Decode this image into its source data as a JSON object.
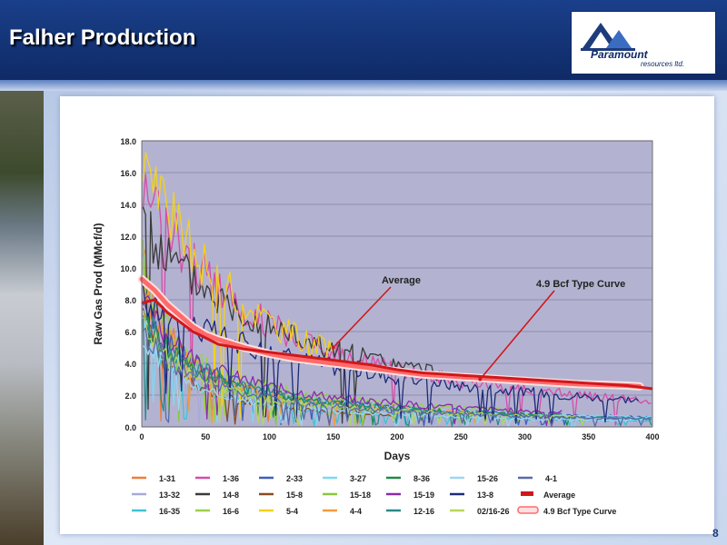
{
  "header": {
    "title": "Falher Production",
    "page_number": "8"
  },
  "logo": {
    "name": "Paramount",
    "sub": "resources ltd."
  },
  "colors": {
    "header_bg": "#1a3f8a",
    "plot_bg": "#b3b3d1",
    "average": "#d0181c",
    "type_curve": "#ff6a6a"
  },
  "chart_data": {
    "type": "line",
    "title": "",
    "xlabel": "Days",
    "ylabel": "Raw Gas Prod (MMcf/d)",
    "xlim": [
      0,
      400
    ],
    "ylim": [
      0,
      18
    ],
    "x_ticks": [
      "0",
      "50",
      "100",
      "150",
      "200",
      "250",
      "300",
      "350",
      "400"
    ],
    "y_ticks": [
      "0.0",
      "2.0",
      "4.0",
      "6.0",
      "8.0",
      "10.0",
      "12.0",
      "14.0",
      "16.0",
      "18.0"
    ],
    "grid": "horizontal",
    "annotations": [
      {
        "text": "Average",
        "points_to": [
          150,
          5.0
        ]
      },
      {
        "text": "4.9 Bcf Type Curve",
        "points_to": [
          265,
          3.0
        ]
      }
    ],
    "legend_position": "bottom",
    "series": [
      {
        "name": "1-31",
        "color": "#f07c3c",
        "qi": 11.0,
        "b": 0.9,
        "di": 0.04,
        "end": 140,
        "seed": 1
      },
      {
        "name": "13-32",
        "color": "#a9a9d8",
        "qi": 9.0,
        "b": 0.7,
        "di": 0.03,
        "end": 360,
        "seed": 2
      },
      {
        "name": "16-35",
        "color": "#3ec4d4",
        "qi": 8.0,
        "b": 1.0,
        "di": 0.05,
        "end": 400,
        "seed": 3
      },
      {
        "name": "1-36",
        "color": "#d64ca8",
        "qi": 16.0,
        "b": 0.6,
        "di": 0.012,
        "end": 400,
        "seed": 4
      },
      {
        "name": "14-8",
        "color": "#3a3a3a",
        "qi": 12.5,
        "b": 0.5,
        "di": 0.008,
        "end": 240,
        "seed": 5
      },
      {
        "name": "16-6",
        "color": "#9bd14a",
        "qi": 10.0,
        "b": 1.0,
        "di": 0.03,
        "end": 300,
        "seed": 6
      },
      {
        "name": "2-33",
        "color": "#3f5ebc",
        "qi": 7.5,
        "b": 0.8,
        "di": 0.02,
        "end": 400,
        "seed": 7
      },
      {
        "name": "15-8",
        "color": "#8a4a22",
        "qi": 8.0,
        "b": 1.0,
        "di": 0.05,
        "end": 200,
        "seed": 8
      },
      {
        "name": "5-4",
        "color": "#f4d21b",
        "qi": 17.0,
        "b": 0.5,
        "di": 0.012,
        "end": 150,
        "seed": 9
      },
      {
        "name": "3-27",
        "color": "#7fd8ee",
        "qi": 6.5,
        "b": 0.9,
        "di": 0.02,
        "end": 400,
        "seed": 10
      },
      {
        "name": "15-18",
        "color": "#86c93c",
        "qi": 11.0,
        "b": 1.0,
        "di": 0.05,
        "end": 180,
        "seed": 11
      },
      {
        "name": "4-4",
        "color": "#f79a3c",
        "qi": 9.0,
        "b": 0.9,
        "di": 0.03,
        "end": 270,
        "seed": 12
      },
      {
        "name": "8-36",
        "color": "#1f8a4a",
        "qi": 7.0,
        "b": 0.8,
        "di": 0.02,
        "end": 340,
        "seed": 13
      },
      {
        "name": "15-19",
        "color": "#8b2aa8",
        "qi": 8.0,
        "b": 0.9,
        "di": 0.02,
        "end": 330,
        "seed": 14
      },
      {
        "name": "12-16",
        "color": "#2a8a8a",
        "qi": 7.5,
        "b": 0.7,
        "di": 0.02,
        "end": 400,
        "seed": 15
      },
      {
        "name": "15-26",
        "color": "#9cd6f2",
        "qi": 6.0,
        "b": 0.9,
        "di": 0.03,
        "end": 390,
        "seed": 16
      },
      {
        "name": "13-8",
        "color": "#1e2a7a",
        "qi": 8.0,
        "b": 0.5,
        "di": 0.006,
        "end": 390,
        "seed": 17
      },
      {
        "name": "02/16-26",
        "color": "#b8d65a",
        "qi": 7.0,
        "b": 1.0,
        "di": 0.03,
        "end": 350,
        "seed": 18
      },
      {
        "name": "4-1",
        "color": "#5a6aa8",
        "qi": 6.0,
        "b": 0.8,
        "di": 0.02,
        "end": 400,
        "seed": 19
      },
      {
        "name": "Average",
        "color": "#d0181c",
        "average": true,
        "values": [
          [
            0,
            7.8
          ],
          [
            10,
            8.0
          ],
          [
            20,
            7.2
          ],
          [
            30,
            6.6
          ],
          [
            40,
            6.0
          ],
          [
            50,
            5.6
          ],
          [
            60,
            5.2
          ],
          [
            80,
            4.9
          ],
          [
            100,
            4.7
          ],
          [
            120,
            4.5
          ],
          [
            140,
            4.3
          ],
          [
            160,
            4.1
          ],
          [
            180,
            3.9
          ],
          [
            200,
            3.6
          ],
          [
            220,
            3.4
          ],
          [
            240,
            3.3
          ],
          [
            260,
            3.2
          ],
          [
            280,
            3.1
          ],
          [
            300,
            3.0
          ],
          [
            320,
            2.9
          ],
          [
            340,
            2.8
          ],
          [
            360,
            2.7
          ],
          [
            380,
            2.6
          ],
          [
            400,
            2.4
          ]
        ]
      },
      {
        "name": "4.9 Bcf Type Curve",
        "color": "#ff6a6a",
        "typecurve": true,
        "values": [
          [
            0,
            9.3
          ],
          [
            10,
            8.6
          ],
          [
            20,
            7.7
          ],
          [
            30,
            7.0
          ],
          [
            40,
            6.3
          ],
          [
            50,
            5.8
          ],
          [
            60,
            5.5
          ],
          [
            80,
            5.0
          ],
          [
            100,
            4.6
          ],
          [
            120,
            4.3
          ],
          [
            140,
            4.1
          ],
          [
            160,
            3.9
          ],
          [
            180,
            3.7
          ],
          [
            200,
            3.5
          ],
          [
            220,
            3.3
          ],
          [
            240,
            3.2
          ],
          [
            260,
            3.1
          ],
          [
            280,
            3.0
          ],
          [
            300,
            2.9
          ],
          [
            320,
            2.8
          ],
          [
            340,
            2.7
          ],
          [
            360,
            2.65
          ],
          [
            380,
            2.6
          ],
          [
            390,
            2.55
          ]
        ]
      }
    ]
  }
}
